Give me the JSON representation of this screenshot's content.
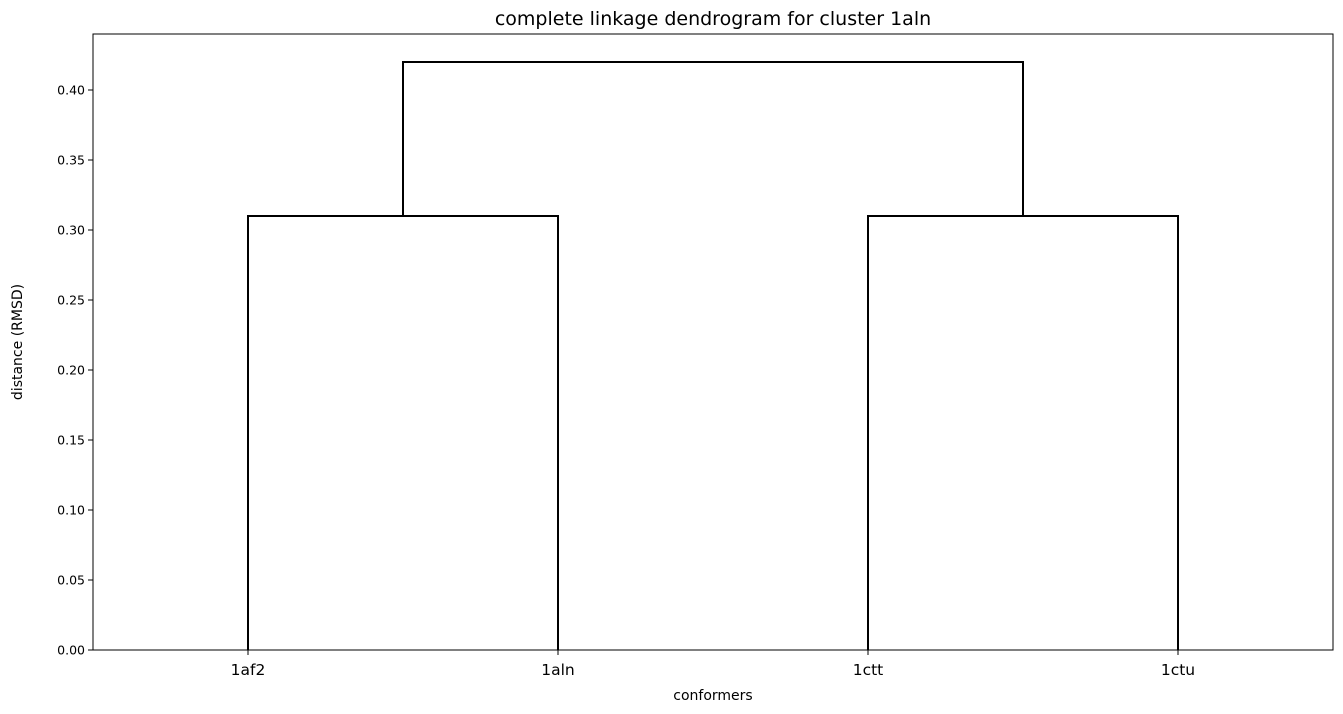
{
  "chart_data": {
    "type": "dendrogram",
    "title": "complete linkage dendrogram for cluster 1aln",
    "xlabel": "conformers",
    "ylabel": "distance (RMSD)",
    "leaves": [
      "1af2",
      "1aln",
      "1ctt",
      "1ctu"
    ],
    "ylim": [
      0,
      0.44
    ],
    "yticks": [
      0.0,
      0.05,
      0.1,
      0.15,
      0.2,
      0.25,
      0.3,
      0.35,
      0.4
    ],
    "ytick_labels": [
      "0.00",
      "0.05",
      "0.10",
      "0.15",
      "0.20",
      "0.25",
      "0.30",
      "0.35",
      "0.40"
    ],
    "grid": false,
    "line_color": "#000000",
    "merges": [
      {
        "left": "1af2",
        "right": "1aln",
        "distance": 0.31
      },
      {
        "left": "1ctt",
        "right": "1ctu",
        "distance": 0.31
      },
      {
        "left": "1af2+1aln",
        "right": "1ctt+1ctu",
        "distance": 0.42
      }
    ]
  }
}
